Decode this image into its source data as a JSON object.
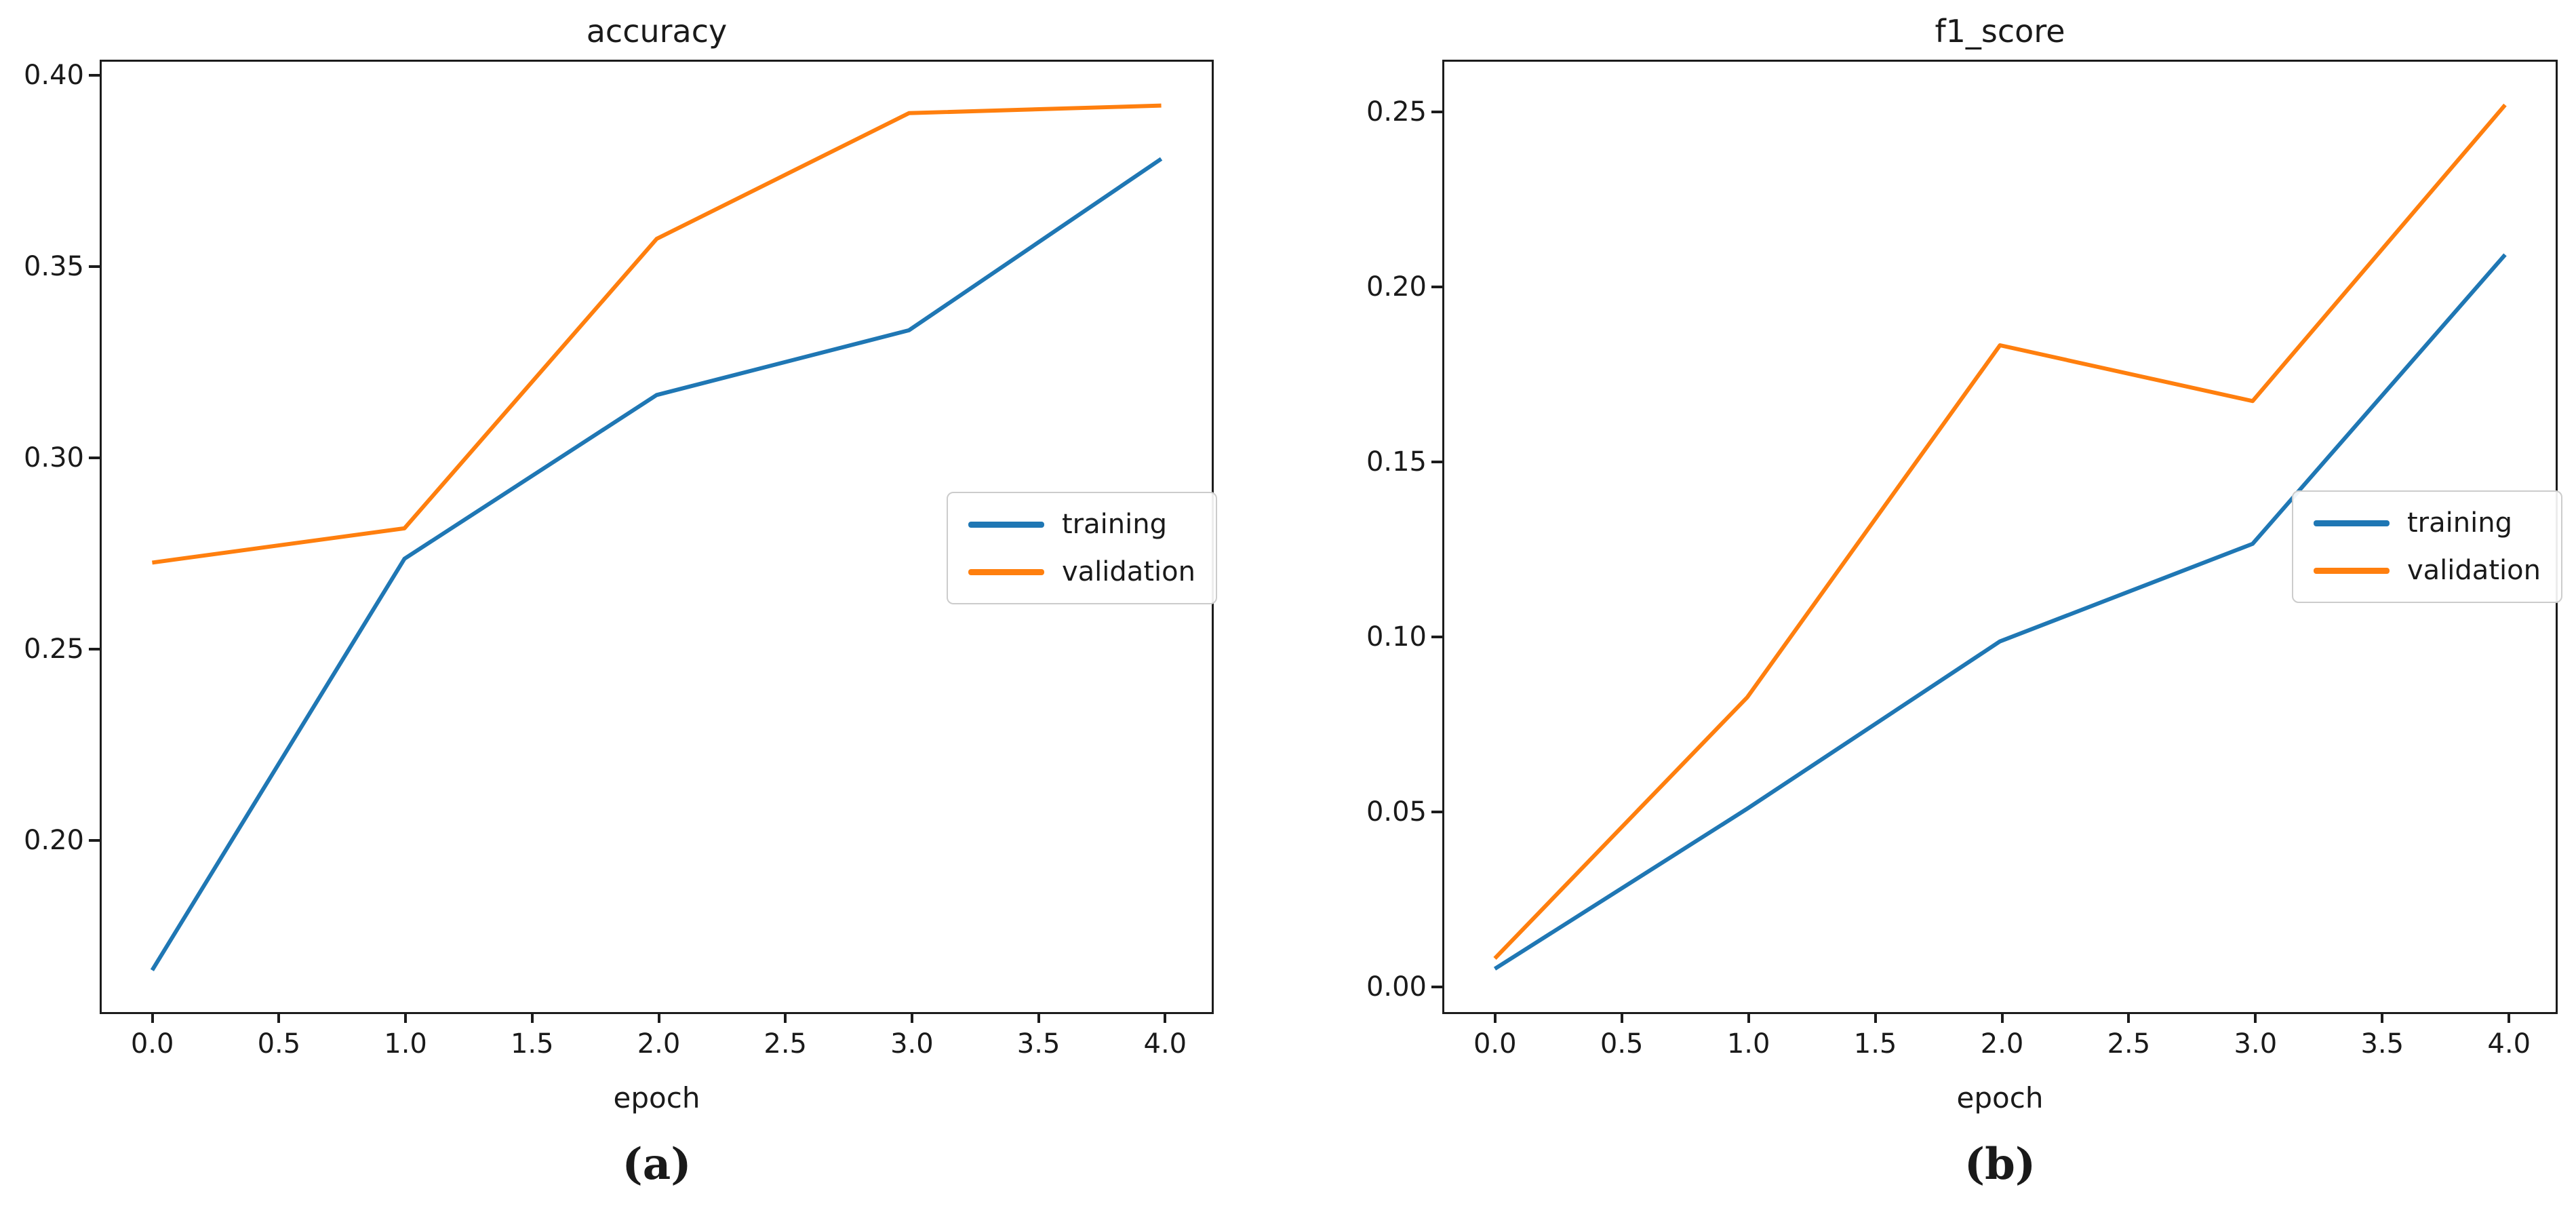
{
  "page": {
    "background": "#ffffff"
  },
  "colors": {
    "training": "#1f77b4",
    "validation": "#ff7f0e",
    "axis": "#1c1c1c"
  },
  "chart_data": [
    {
      "type": "line",
      "title": "accuracy",
      "xlabel": "epoch",
      "caption": "(a)",
      "x": [
        0,
        1,
        2,
        3,
        4
      ],
      "series": [
        {
          "name": "training",
          "color": "#1f77b4",
          "values": [
            0.165,
            0.273,
            0.316,
            0.333,
            0.378
          ]
        },
        {
          "name": "validation",
          "color": "#ff7f0e",
          "values": [
            0.272,
            0.281,
            0.357,
            0.39,
            0.392
          ]
        }
      ],
      "xlim": [
        -0.2,
        4.2
      ],
      "ylim": [
        0.154,
        0.4035
      ],
      "xticks": [
        0.0,
        0.5,
        1.0,
        1.5,
        2.0,
        2.5,
        3.0,
        3.5,
        4.0
      ],
      "xtick_labels": [
        "0.0",
        "0.5",
        "1.0",
        "1.5",
        "2.0",
        "2.5",
        "3.0",
        "3.5",
        "4.0"
      ],
      "yticks": [
        0.2,
        0.25,
        0.3,
        0.35,
        0.4
      ],
      "ytick_labels": [
        "0.20",
        "0.25",
        "0.30",
        "0.35",
        "0.40"
      ],
      "grid": false,
      "legend_position": "center right"
    },
    {
      "type": "line",
      "title": "f1_score",
      "xlabel": "epoch",
      "caption": "(b)",
      "x": [
        0,
        1,
        2,
        3,
        4
      ],
      "series": [
        {
          "name": "training",
          "color": "#1f77b4",
          "values": [
            0.004,
            0.05,
            0.098,
            0.126,
            0.209
          ]
        },
        {
          "name": "validation",
          "color": "#ff7f0e",
          "values": [
            0.007,
            0.082,
            0.183,
            0.167,
            0.252
          ]
        }
      ],
      "xlim": [
        -0.2,
        4.2
      ],
      "ylim": [
        -0.0084,
        0.2644
      ],
      "xticks": [
        0.0,
        0.5,
        1.0,
        1.5,
        2.0,
        2.5,
        3.0,
        3.5,
        4.0
      ],
      "xtick_labels": [
        "0.0",
        "0.5",
        "1.0",
        "1.5",
        "2.0",
        "2.5",
        "3.0",
        "3.5",
        "4.0"
      ],
      "yticks": [
        0.0,
        0.05,
        0.1,
        0.15,
        0.2,
        0.25
      ],
      "ytick_labels": [
        "0.00",
        "0.05",
        "0.10",
        "0.15",
        "0.20",
        "0.25"
      ],
      "grid": false,
      "legend_position": "center right"
    }
  ]
}
